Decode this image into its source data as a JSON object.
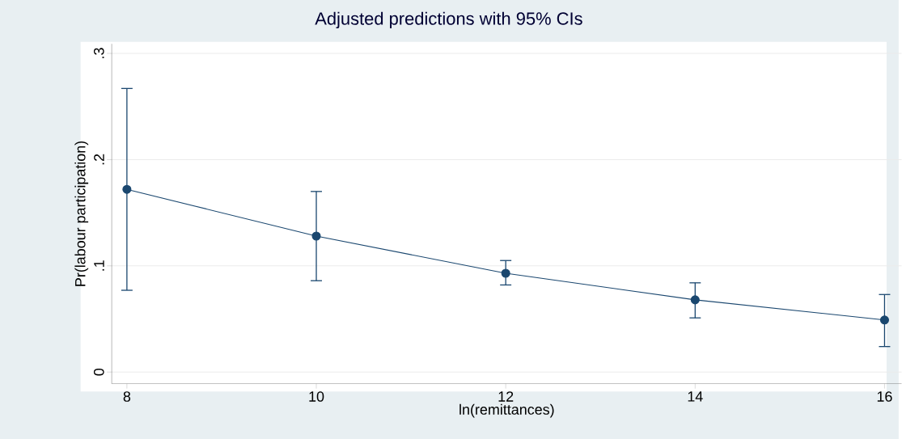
{
  "chart_data": {
    "type": "line",
    "title": "Adjusted predictions with 95% CIs",
    "xlabel": "ln(remittances)",
    "ylabel": "Pr(labour participation)",
    "x": [
      8,
      10,
      12,
      14,
      16
    ],
    "values": [
      0.172,
      0.128,
      0.093,
      0.068,
      0.049
    ],
    "errors": [
      [
        0.077,
        0.267
      ],
      [
        0.086,
        0.17
      ],
      [
        0.082,
        0.105
      ],
      [
        0.051,
        0.084
      ],
      [
        0.024,
        0.073
      ]
    ],
    "color": "#1a476f",
    "marker": "circle",
    "line_style": "solid",
    "grid": "y",
    "xlim": [
      7.84,
      16.18
    ],
    "ylim": [
      -0.011,
      0.309
    ],
    "xticks": [
      8,
      10,
      12,
      14,
      16
    ],
    "yticks": [
      {
        "value": 0,
        "label": "0"
      },
      {
        "value": 0.1,
        "label": ".1"
      },
      {
        "value": 0.2,
        "label": ".2"
      },
      {
        "value": 0.3,
        "label": ".3"
      }
    ]
  }
}
